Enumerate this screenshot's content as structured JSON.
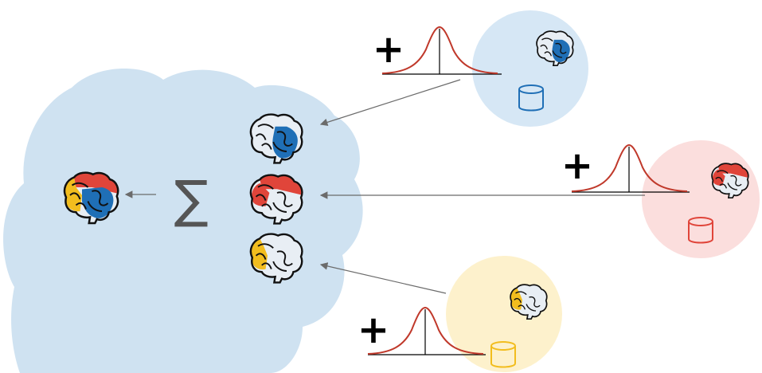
{
  "sum_symbol": "∑",
  "plus_symbol": "+",
  "colors": {
    "server_cloud": "#cfe2f1",
    "client_blue_bg": "#d6e7f5",
    "client_red_bg": "#fbdedd",
    "client_yellow_bg": "#fdf1cc",
    "blue": "#1f6fb6",
    "red": "#e0453a",
    "yellow": "#f2bd1e",
    "gaussian": "#c0392b",
    "arrow": "#6b6b6b"
  },
  "clients": [
    {
      "name": "client-blue",
      "color_key": "blue",
      "icons": [
        "brain-icon",
        "gaussian-noise-icon",
        "database-icon"
      ]
    },
    {
      "name": "client-red",
      "color_key": "red",
      "icons": [
        "brain-icon",
        "gaussian-noise-icon",
        "database-icon"
      ]
    },
    {
      "name": "client-yellow",
      "color_key": "yellow",
      "icons": [
        "brain-icon",
        "gaussian-noise-icon",
        "database-icon"
      ]
    }
  ],
  "server": {
    "icons": [
      "aggregated-brain-icon",
      "sum-icon",
      "brain-icon"
    ]
  }
}
